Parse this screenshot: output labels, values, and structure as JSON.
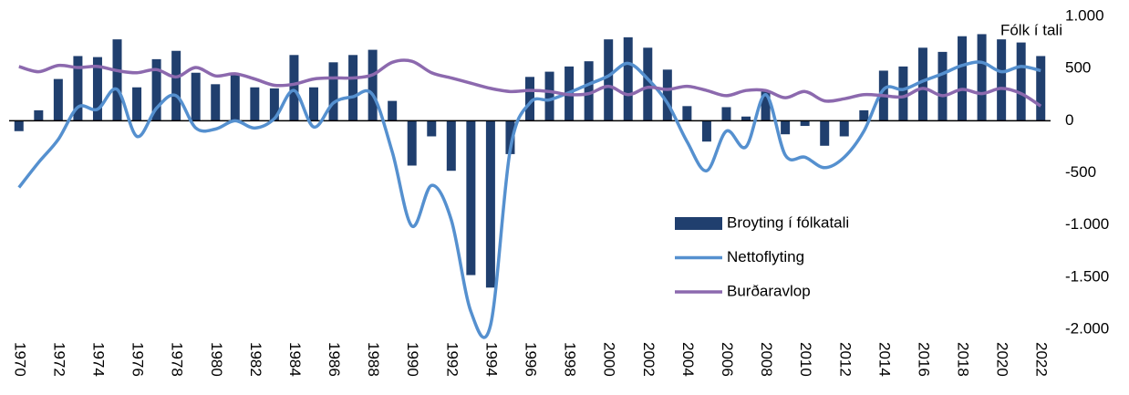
{
  "chart_data": {
    "type": "bar-line",
    "y_label": "Fólk í tali",
    "categories": [
      "1970",
      null,
      "1972",
      null,
      "1974",
      null,
      "1976",
      null,
      "1978",
      null,
      "1980",
      null,
      "1982",
      null,
      "1984",
      null,
      "1986",
      null,
      "1988",
      null,
      "1990",
      null,
      "1992",
      null,
      "1994",
      null,
      "1996",
      null,
      "1998",
      null,
      "2000",
      null,
      "2002",
      null,
      "2004",
      null,
      "2006",
      null,
      "2008",
      null,
      "2010",
      null,
      "2012",
      null,
      "2014",
      null,
      "2016",
      null,
      "2018",
      null,
      "2020",
      null,
      "2022"
    ],
    "series": [
      {
        "name": "Broyting í fólkatali",
        "type": "bar",
        "color": "#203f6e",
        "values": [
          -100,
          100,
          400,
          620,
          610,
          780,
          320,
          590,
          670,
          460,
          350,
          440,
          320,
          310,
          630,
          320,
          560,
          630,
          680,
          190,
          -430,
          -150,
          -480,
          -1480,
          -1600,
          -320,
          420,
          470,
          520,
          570,
          780,
          800,
          700,
          490,
          140,
          -200,
          130,
          40,
          280,
          -130,
          -50,
          -240,
          -150,
          100,
          480,
          520,
          700,
          660,
          810,
          830,
          780,
          750,
          620
        ]
      },
      {
        "name": "Nettoflyting",
        "type": "line",
        "color": "#5590cf",
        "values": [
          -640,
          -400,
          -180,
          130,
          110,
          300,
          -150,
          120,
          240,
          -70,
          -80,
          0,
          -70,
          20,
          290,
          -60,
          170,
          230,
          250,
          -300,
          -1010,
          -620,
          -950,
          -1830,
          -1960,
          -280,
          170,
          200,
          270,
          350,
          430,
          550,
          400,
          170,
          -200,
          -480,
          -100,
          -250,
          250,
          -330,
          -350,
          -450,
          -350,
          -100,
          300,
          300,
          380,
          450,
          530,
          560,
          470,
          520,
          480
        ]
      },
      {
        "name": "Burðaravlop",
        "type": "line",
        "color": "#8c69ae",
        "values": [
          520,
          470,
          530,
          510,
          520,
          480,
          460,
          490,
          420,
          510,
          430,
          450,
          400,
          340,
          350,
          400,
          410,
          410,
          440,
          560,
          570,
          460,
          410,
          360,
          310,
          280,
          290,
          280,
          250,
          260,
          330,
          250,
          320,
          300,
          330,
          290,
          240,
          290,
          290,
          220,
          280,
          190,
          210,
          250,
          240,
          230,
          310,
          240,
          300,
          260,
          310,
          260,
          140
        ]
      }
    ],
    "ylim": [
      -2000,
      1000
    ],
    "yticks": [
      {
        "value": 1000,
        "label": "1.000"
      },
      500,
      0,
      -500,
      {
        "value": -1000,
        "label": "-1.000"
      },
      {
        "value": -1500,
        "label": "-1.500"
      },
      {
        "value": -2000,
        "label": "-2.000"
      }
    ]
  }
}
